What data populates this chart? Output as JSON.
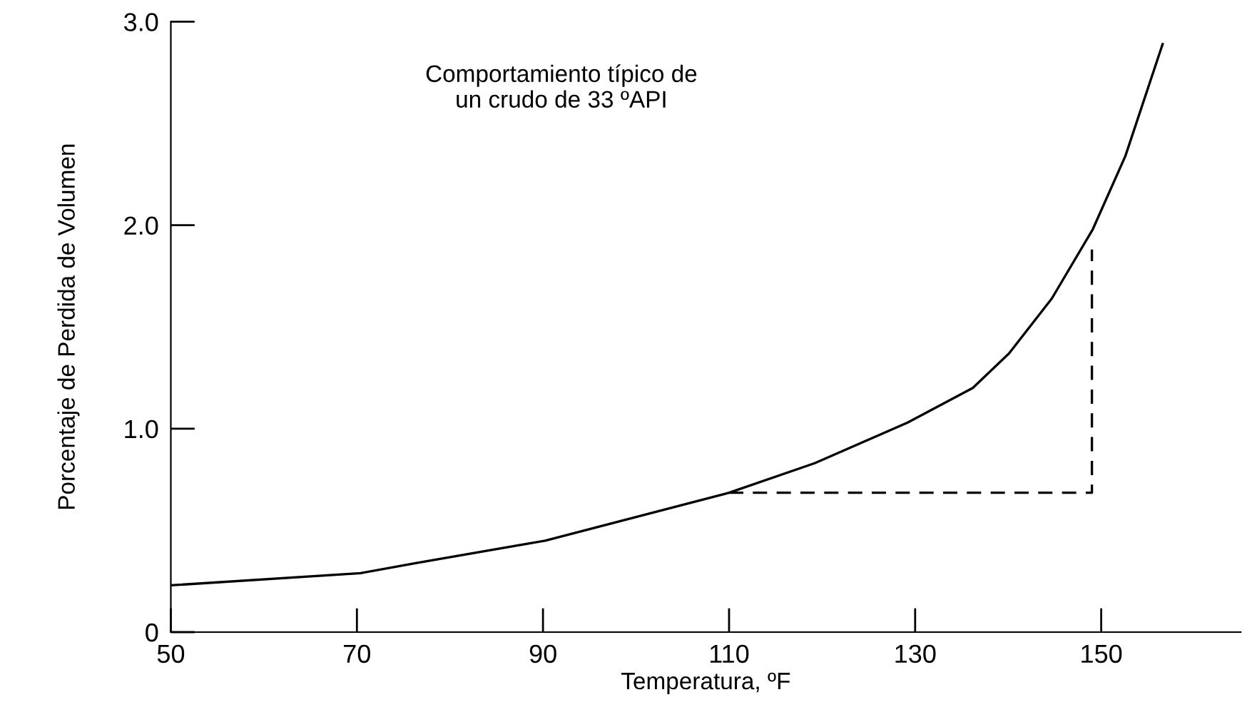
{
  "chart_data": {
    "type": "line",
    "xlabel": "Temperatura, ºF",
    "ylabel": "Porcentaje de Perdida de Volumen",
    "annotations": [
      "Comportamiento típico de\nun crudo de 33 ºAPI"
    ],
    "xlim": [
      50,
      165
    ],
    "xticks": [
      50,
      70,
      90,
      110,
      130,
      150
    ],
    "ylim": [
      0,
      3.0
    ],
    "yticks": [
      0,
      {
        "value": 1,
        "label": "1.0"
      },
      {
        "value": 2,
        "label": "2.0"
      },
      {
        "value": 3,
        "label": "3.0"
      }
    ],
    "grid": false,
    "legend": false,
    "marker": "none",
    "series": [
      {
        "color": "#000000",
        "line_style": "solid",
        "x": [
          50,
          70.4,
          76.4,
          90.3,
          110,
          119.2,
          129.2,
          136.2,
          140.1,
          144.7,
          149.1,
          152.6,
          156.6
        ],
        "values": [
          0.23,
          0.29,
          0.34,
          0.45,
          0.685,
          0.83,
          1.03,
          1.2,
          1.37,
          1.64,
          1.98,
          2.34,
          2.89
        ]
      },
      {
        "color": "#000000",
        "line_style": "dashed",
        "x": [
          110,
          149,
          149
        ],
        "values": [
          0.685,
          0.685,
          1.88
        ]
      }
    ]
  }
}
